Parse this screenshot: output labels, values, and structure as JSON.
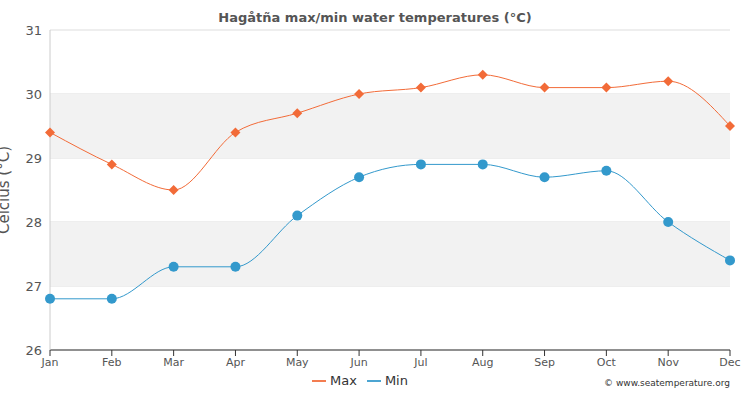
{
  "chart_data": {
    "type": "line",
    "title": "Hagåtña max/min water temperatures (°C)",
    "y_label": "Celcius (°C)",
    "annotation": "© www.seatemperature.org",
    "categories": [
      "Jan",
      "Feb",
      "Mar",
      "Apr",
      "May",
      "Jun",
      "Jul",
      "Aug",
      "Sep",
      "Oct",
      "Nov",
      "Dec"
    ],
    "series": [
      {
        "name": "Max",
        "color": "#f26b38",
        "marker": "diamond",
        "values": [
          29.4,
          28.9,
          28.5,
          29.4,
          29.7,
          30.0,
          30.1,
          30.3,
          30.1,
          30.1,
          30.2,
          29.5
        ]
      },
      {
        "name": "Min",
        "color": "#3399cc",
        "marker": "circle",
        "values": [
          26.8,
          26.8,
          27.3,
          27.3,
          28.1,
          28.7,
          28.9,
          28.9,
          28.7,
          28.8,
          28.0,
          27.4
        ]
      }
    ],
    "ylim": [
      26,
      31
    ],
    "yticks": [
      26,
      27,
      28,
      29,
      30,
      31
    ],
    "grid": true,
    "legend": "bottom"
  }
}
